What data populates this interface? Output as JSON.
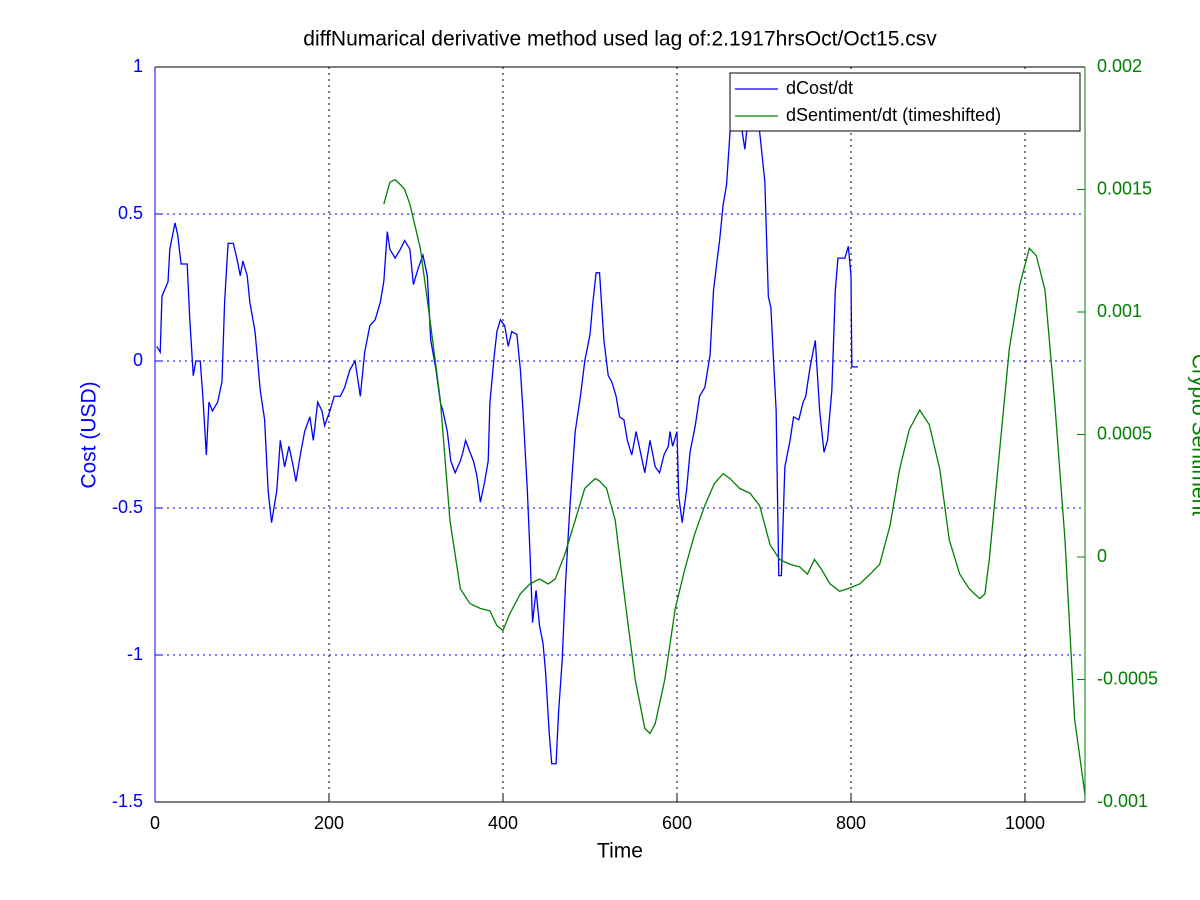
{
  "chart_data": {
    "type": "line",
    "title": "diffNumarical derivative method used lag of:2.1917hrsOct/Oct15.csv",
    "xlabel": "Time",
    "ylabel": "Cost (USD)",
    "y2label": "Crypto Sentiment",
    "xlim": [
      0,
      1069
    ],
    "xticks": [
      0,
      200,
      400,
      600,
      800,
      1000
    ],
    "ylim": [
      -1.5,
      1
    ],
    "yticks": [
      -1.5,
      -1,
      -0.5,
      0,
      0.5,
      1
    ],
    "y2lim": [
      -0.001,
      0.002
    ],
    "y2ticks": [
      -0.001,
      -0.0005,
      0,
      0.0005,
      0.001,
      0.0015,
      0.002
    ],
    "grid": true,
    "legend": "top-right",
    "series": [
      {
        "name": "dCost/dt",
        "color": "#0000ff",
        "x": [
          2,
          6,
          8,
          15,
          17,
          23,
          26,
          30,
          37,
          40,
          44,
          47,
          52,
          55,
          59,
          62,
          66,
          72,
          77,
          80,
          84,
          90,
          94,
          98,
          101,
          106,
          109,
          115,
          121,
          126,
          130,
          134,
          140,
          144,
          149,
          154,
          159,
          162,
          167,
          172,
          178,
          182,
          187,
          192,
          195,
          201,
          206,
          213,
          218,
          224,
          230,
          236,
          241,
          247,
          253,
          259,
          263,
          267,
          270,
          276,
          282,
          287,
          293,
          297,
          302,
          308,
          313,
          317,
          323,
          328,
          331,
          336,
          340,
          345,
          351,
          354,
          357,
          362,
          366,
          370,
          374,
          379,
          383,
          385,
          390,
          393,
          397,
          402,
          406,
          410,
          416,
          420,
          423,
          428,
          431,
          434,
          438,
          442,
          446,
          449,
          453,
          456,
          461,
          464,
          468,
          472,
          477,
          483,
          489,
          494,
          500,
          503,
          507,
          511,
          516,
          521,
          525,
          530,
          534,
          539,
          543,
          548,
          553,
          558,
          563,
          569,
          575,
          580,
          585,
          590,
          592,
          595,
          600,
          602,
          606,
          611,
          615,
          621,
          626,
          632,
          638,
          642,
          646,
          649,
          653,
          657,
          661,
          664,
          669,
          678,
          684,
          690,
          695,
          701,
          705,
          708,
          711,
          714,
          717,
          720,
          724,
          730,
          734,
          740,
          745,
          748,
          753,
          759,
          764,
          769,
          773,
          778,
          782,
          785,
          793,
          797,
          800,
          801,
          808
        ],
        "values": [
          0.05,
          0.03,
          0.22,
          0.27,
          0.38,
          0.47,
          0.43,
          0.33,
          0.33,
          0.14,
          -0.05,
          0,
          0,
          -0.12,
          -0.32,
          -0.14,
          -0.17,
          -0.14,
          -0.07,
          0.2,
          0.4,
          0.4,
          0.35,
          0.29,
          0.34,
          0.29,
          0.2,
          0.1,
          -0.1,
          -0.2,
          -0.44,
          -0.55,
          -0.44,
          -0.27,
          -0.36,
          -0.29,
          -0.36,
          -0.41,
          -0.32,
          -0.24,
          -0.19,
          -0.27,
          -0.14,
          -0.17,
          -0.22,
          -0.17,
          -0.12,
          -0.12,
          -0.09,
          -0.03,
          0,
          -0.12,
          0.03,
          0.12,
          0.14,
          0.2,
          0.27,
          0.44,
          0.38,
          0.35,
          0.38,
          0.41,
          0.38,
          0.26,
          0.31,
          0.36,
          0.29,
          0.07,
          -0.03,
          -0.14,
          -0.17,
          -0.24,
          -0.34,
          -0.38,
          -0.34,
          -0.31,
          -0.27,
          -0.31,
          -0.34,
          -0.39,
          -0.48,
          -0.41,
          -0.34,
          -0.14,
          0.02,
          0.1,
          0.14,
          0.12,
          0.05,
          0.1,
          0.09,
          -0.03,
          -0.17,
          -0.44,
          -0.65,
          -0.89,
          -0.78,
          -0.9,
          -0.96,
          -1.06,
          -1.26,
          -1.37,
          -1.37,
          -1.19,
          -1.02,
          -0.75,
          -0.49,
          -0.24,
          -0.12,
          0,
          0.09,
          0.19,
          0.3,
          0.3,
          0.07,
          -0.05,
          -0.07,
          -0.12,
          -0.19,
          -0.2,
          -0.27,
          -0.32,
          -0.24,
          -0.31,
          -0.38,
          -0.27,
          -0.36,
          -0.38,
          -0.32,
          -0.29,
          -0.24,
          -0.29,
          -0.24,
          -0.46,
          -0.55,
          -0.44,
          -0.31,
          -0.22,
          -0.12,
          -0.09,
          0.02,
          0.24,
          0.34,
          0.41,
          0.53,
          0.6,
          0.78,
          0.89,
          0.9,
          0.72,
          0.89,
          0.87,
          0.78,
          0.61,
          0.22,
          0.18,
          0,
          -0.17,
          -0.73,
          -0.73,
          -0.36,
          -0.27,
          -0.19,
          -0.2,
          -0.14,
          -0.12,
          -0.02,
          0.07,
          -0.17,
          -0.31,
          -0.27,
          -0.1,
          0.24,
          0.35,
          0.35,
          0.39,
          0.29,
          -0.02,
          -0.02
        ]
      },
      {
        "name": "dSentiment/dt (timeshifted)",
        "color": "#008000",
        "axis": "y2",
        "x": [
          263,
          270,
          276,
          282,
          287,
          293,
          305,
          316,
          328,
          339,
          351,
          362,
          374,
          385,
          393,
          400,
          408,
          420,
          431,
          442,
          452,
          460,
          471,
          483,
          494,
          506,
          511,
          519,
          529,
          540,
          552,
          563,
          569,
          575,
          586,
          598,
          609,
          620,
          632,
          643,
          653,
          661,
          672,
          684,
          695,
          707,
          718,
          730,
          741,
          750,
          758,
          766,
          776,
          787,
          796,
          810,
          822,
          833,
          845,
          856,
          867,
          879,
          890,
          902,
          913,
          925,
          936,
          948,
          954,
          959,
          971,
          982,
          994,
          1005,
          1013,
          1023,
          1034,
          1046,
          1057,
          1069
        ],
        "values": [
          0.00144,
          0.00153,
          0.00154,
          0.00152,
          0.0015,
          0.00144,
          0.00126,
          0.00097,
          0.00064,
          0.00015,
          -0.00013,
          -0.00019,
          -0.00021,
          -0.00022,
          -0.00028,
          -0.0003,
          -0.00023,
          -0.00015,
          -0.00011,
          -9e-05,
          -0.00011,
          -9e-05,
          1e-05,
          0.00015,
          0.00028,
          0.00032,
          0.00031,
          0.00028,
          0.00015,
          -0.00017,
          -0.0005,
          -0.0007,
          -0.00072,
          -0.00068,
          -0.0005,
          -0.00021,
          -5e-05,
          9e-05,
          0.00021,
          0.0003,
          0.00034,
          0.00032,
          0.00028,
          0.00026,
          0.00021,
          5e-05,
          -1e-05,
          -3e-05,
          -4e-05,
          -7e-05,
          -1e-05,
          -5e-05,
          -0.00011,
          -0.00014,
          -0.00013,
          -0.00011,
          -7e-05,
          -3e-05,
          0.00013,
          0.00036,
          0.00052,
          0.0006,
          0.00054,
          0.00036,
          7e-05,
          -7e-05,
          -0.00013,
          -0.00017,
          -0.00015,
          -1e-05,
          0.00044,
          0.00085,
          0.00111,
          0.00126,
          0.00123,
          0.00109,
          0.00064,
          7e-05,
          -0.00066,
          -0.00097
        ]
      }
    ]
  }
}
